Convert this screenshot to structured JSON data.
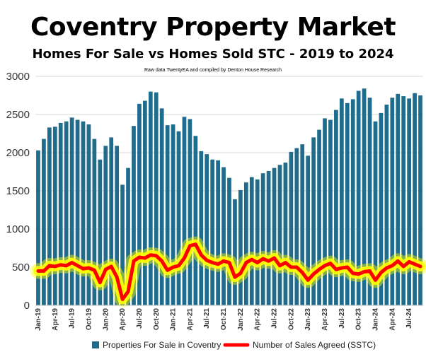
{
  "chart_data": {
    "type": "bar",
    "title": "Coventry Property Market",
    "subtitle": "Homes For Sale vs Homes Sold STC - 2019 to 2024",
    "source": "Raw data TwentyEA and compiled by Denton House Research",
    "ylim": [
      0,
      3000
    ],
    "yticks": [
      0,
      500,
      1000,
      1500,
      2000,
      2500,
      3000
    ],
    "grid": true,
    "legend_position": "bottom",
    "x_tick_labels": [
      "Jan-19",
      "Apr-19",
      "Jul-19",
      "Oct-19",
      "Jan-20",
      "Apr-20",
      "Jul-20",
      "Oct-20",
      "Jan-21",
      "Apr-21",
      "Jul-21",
      "Oct-21",
      "Jan-22",
      "Apr-22",
      "Jul-22",
      "Oct-22",
      "Jan-23",
      "Apr-23",
      "Jul-23",
      "Oct-23",
      "Jan-24",
      "Apr-24",
      "Jul-24"
    ],
    "series": [
      {
        "name": "Properties For Sale in Coventry",
        "type": "bar",
        "color": "#1f6c8c",
        "values": [
          2030,
          2180,
          2330,
          2340,
          2390,
          2410,
          2460,
          2430,
          2410,
          2370,
          2180,
          1910,
          2090,
          2200,
          2090,
          1580,
          1800,
          2350,
          2640,
          2680,
          2800,
          2790,
          2580,
          2360,
          2370,
          2280,
          2470,
          2440,
          2220,
          2020,
          1980,
          1910,
          1900,
          1810,
          1670,
          1390,
          1510,
          1610,
          1680,
          1650,
          1730,
          1760,
          1800,
          1840,
          1870,
          2010,
          2060,
          2110,
          1960,
          2200,
          2300,
          2450,
          2430,
          2560,
          2710,
          2650,
          2700,
          2810,
          2840,
          2720,
          2410,
          2520,
          2630,
          2720,
          2770,
          2740,
          2710,
          2780,
          2750
        ]
      },
      {
        "name": "Number of Sales Agreed (SSTC)",
        "type": "line",
        "color": "#ff0000",
        "glow_color": "#ffff00",
        "values": [
          450,
          450,
          520,
          510,
          530,
          520,
          560,
          520,
          480,
          490,
          460,
          300,
          470,
          510,
          370,
          80,
          180,
          580,
          630,
          620,
          660,
          650,
          580,
          460,
          500,
          520,
          620,
          780,
          800,
          660,
          590,
          560,
          540,
          580,
          560,
          370,
          420,
          560,
          600,
          560,
          610,
          580,
          620,
          520,
          560,
          500,
          500,
          430,
          330,
          410,
          470,
          520,
          550,
          470,
          490,
          500,
          420,
          410,
          440,
          450,
          330,
          430,
          490,
          520,
          580,
          510,
          570,
          540,
          510
        ]
      }
    ]
  }
}
